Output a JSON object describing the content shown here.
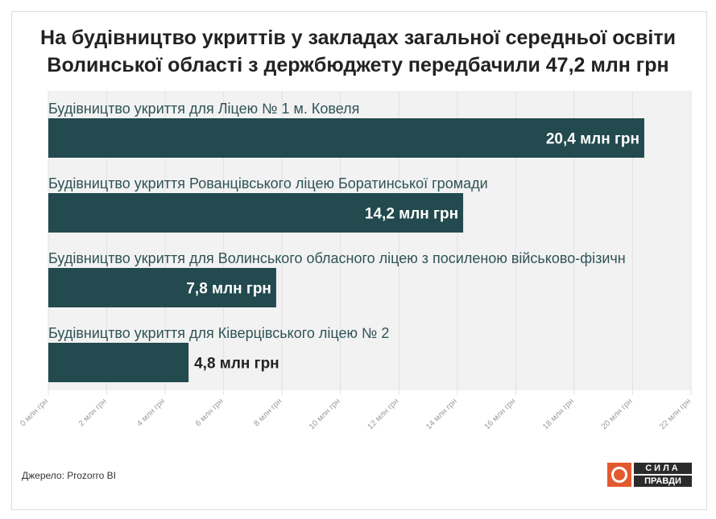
{
  "title": {
    "line1": "На будівництво укриттів у закладах загальної середньої освіти",
    "line2": "Волинської області з держбюджету передбачили 47,2 млн грн"
  },
  "source": "Джерело: Prozorro BI",
  "logo": {
    "line1": "СИЛА",
    "line2": "ПРАВДИ",
    "accent": "#e45a2f"
  },
  "colors": {
    "bar": "#234a4e",
    "plot_bg": "#f2f2f2",
    "label": "#2f5356",
    "value_outside": "#222222",
    "value_inside": "#ffffff"
  },
  "chart_data": {
    "type": "bar",
    "orientation": "horizontal",
    "categories": [
      "Будівництво укриття для Ліцею № 1 м. Ковеля",
      "Будівництво укриття Рованцівського ліцею Боратинської громади",
      "Будівництво укриття для Волинського обласного ліцею з посиленою військово-фізичн",
      "Будівництво укриття для Ківерцівського ліцею № 2"
    ],
    "values": [
      20.4,
      14.2,
      7.8,
      4.8
    ],
    "value_labels": [
      "20,4 млн грн",
      "14,2 млн грн",
      "7,8 млн грн",
      "4,8 млн грн"
    ],
    "xlim": [
      0,
      22
    ],
    "ticks": [
      0,
      2,
      4,
      6,
      8,
      10,
      12,
      14,
      16,
      18,
      20,
      22
    ],
    "tick_labels": [
      "0 млн грн",
      "2 млн грн",
      "4 млн грн",
      "6 млн грн",
      "8 млн грн",
      "10 млн грн",
      "12 млн грн",
      "14 млн грн",
      "16 млн грн",
      "18 млн грн",
      "20 млн грн",
      "22 млн грн"
    ],
    "grid": true,
    "legend": "none",
    "title": "",
    "xlabel": "",
    "ylabel": ""
  }
}
